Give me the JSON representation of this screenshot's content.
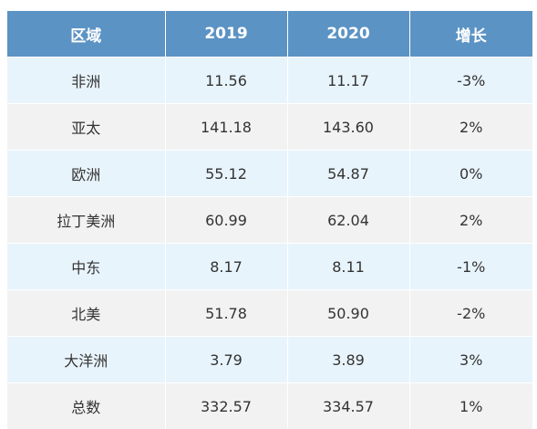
{
  "table": {
    "headers": [
      "区域",
      "2019",
      "2020",
      "增长"
    ],
    "rows": [
      [
        "非洲",
        "11.56",
        "11.17",
        "-3%"
      ],
      [
        "亚太",
        "141.18",
        "143.60",
        "2%"
      ],
      [
        "欧洲",
        "55.12",
        "54.87",
        "0%"
      ],
      [
        "拉丁美洲",
        "60.99",
        "62.04",
        "2%"
      ],
      [
        "中东",
        "8.17",
        "8.11",
        "-1%"
      ],
      [
        "北美",
        "51.78",
        "50.90",
        "-2%"
      ],
      [
        "大洋洲",
        "3.79",
        "3.89",
        "3%"
      ],
      [
        "总数",
        "332.57",
        "334.57",
        "1%"
      ]
    ]
  },
  "colors": {
    "header_bg": "#5b93c4",
    "row_odd_bg": "#e8f4fc",
    "row_even_bg": "#f2f2f2"
  }
}
